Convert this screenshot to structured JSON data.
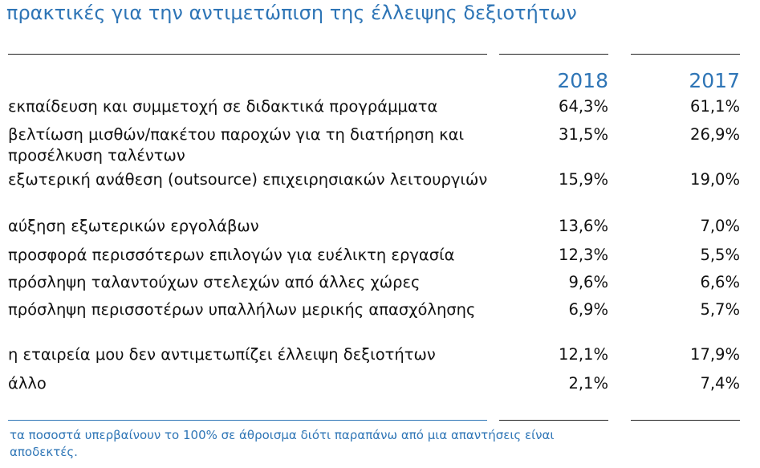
{
  "title": "πρακτικές για την αντιμετώπιση της έλλειψης δεξιοτήτων",
  "table": {
    "columns": [
      "2018",
      "2017"
    ],
    "rows": [
      [
        "εκπαίδευση και συμμετοχή σε διδακτικά προγράμματα",
        "64,3%",
        "61,1%"
      ],
      [
        "βελτίωση μισθών/πακέτου παροχών για τη διατήρηση και προσέλκυση ταλέντων",
        "31,5%",
        "26,9%"
      ],
      [
        "εξωτερική ανάθεση (outsource) επιχειρησιακών λειτουργιών",
        "15,9%",
        "19,0%"
      ],
      [
        "αύξηση εξωτερικών εργολάβων",
        "13,6%",
        "7,0%"
      ],
      [
        "προσφορά περισσότερων επιλογών για ευέλικτη εργασία",
        "12,3%",
        "5,5%"
      ],
      [
        "πρόσληψη ταλαντούχων στελεχών από άλλες χώρες",
        "9,6%",
        "6,6%"
      ],
      [
        "πρόσληψη περισσοτέρων υπαλλήλων μερικής απασχόλησης",
        "6,9%",
        "5,7%"
      ],
      [
        "η εταιρεία μου δεν αντιμετωπίζει έλλειψη δεξιοτήτων",
        "12,1%",
        "17,9%"
      ],
      [
        "άλλο",
        "2,1%",
        "7,4%"
      ]
    ]
  },
  "footnote": "τα ποσοστά υπερβαίνουν το 100% σε άθροισμα διότι παραπάνω από μια απαντήσεις είναι αποδεκτές."
}
